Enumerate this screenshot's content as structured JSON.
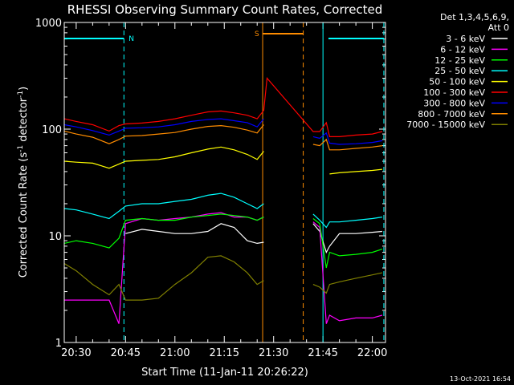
{
  "chart_data": {
    "type": "line",
    "title": "RHESSI Observing Summary Count Rates, Corrected",
    "xlabel": "Start Time (11-Jan-11 20:26:22)",
    "ylabel": "Corrected Count Rate (s-1 detector-1)",
    "ylabel_parts": [
      "Corrected Count Rate (s",
      "-1",
      " detector",
      "-1",
      ")"
    ],
    "y_scale": "log",
    "ylim": [
      1,
      1000
    ],
    "xlim": [
      "20:26:22",
      "22:04:00"
    ],
    "x_ticks": [
      "20:30",
      "20:45",
      "21:00",
      "21:15",
      "21:30",
      "21:45",
      "22:00"
    ],
    "y_ticks": [
      "1",
      "10",
      "100",
      "1000"
    ],
    "legend_header": [
      "Det 1,3,4,5,6,9,",
      "Att 0"
    ],
    "legend_placement": "right",
    "timestamp": "13-Oct-2021 16:54",
    "flags": [
      {
        "label": "N",
        "color": "#00ffff",
        "start": "20:26:22",
        "end": "20:44:30"
      },
      {
        "label": "",
        "color": "#00ffff",
        "start": "21:46:40",
        "end": "22:03:30"
      },
      {
        "label": "S",
        "color": "#ff8c00",
        "start": "21:26:40",
        "end": "21:39:00"
      }
    ],
    "vlines": [
      {
        "time": "20:26:22",
        "style": "solid",
        "color": "#00ffff"
      },
      {
        "time": "20:44:30",
        "style": "dashed",
        "color": "#00ffff"
      },
      {
        "time": "21:26:40",
        "style": "solid",
        "color": "#ff8c00"
      },
      {
        "time": "21:39:00",
        "style": "dashed",
        "color": "#ff8c00"
      },
      {
        "time": "21:45:00",
        "style": "solid",
        "color": "#00ffff"
      },
      {
        "time": "22:03:30",
        "style": "dashed",
        "color": "#00ffff"
      }
    ],
    "x": [
      "20:26:22",
      "20:30",
      "20:35",
      "20:40",
      "20:43",
      "20:45",
      "20:50",
      "20:55",
      "21:00",
      "21:05",
      "21:10",
      "21:14",
      "21:18",
      "21:22",
      "21:25",
      "21:27",
      "21:28",
      "21:42",
      "21:44",
      "21:46",
      "21:47",
      "21:50",
      "21:55",
      "22:00",
      "22:03"
    ],
    "series": [
      {
        "name": "3 - 6 keV",
        "color": "#ffffff",
        "values": [
          null,
          null,
          null,
          null,
          null,
          10.5,
          11.5,
          11,
          10.5,
          10.5,
          11,
          13,
          12,
          9,
          8.5,
          8.7,
          null,
          13,
          11,
          7,
          8,
          10.5,
          10.5,
          10.8,
          11
        ]
      },
      {
        "name": "6 - 12 keV",
        "color": "#ff00ff",
        "values": [
          2.5,
          2.5,
          2.5,
          2.5,
          1.5,
          13,
          14.5,
          14,
          14.5,
          15,
          16,
          16.5,
          15,
          15,
          14,
          15,
          null,
          13.5,
          12,
          1.5,
          1.8,
          1.6,
          1.7,
          1.7,
          1.8
        ]
      },
      {
        "name": "12 - 25 keV",
        "color": "#00ff00",
        "values": [
          8.5,
          9,
          8.5,
          7.7,
          9.5,
          14,
          14.5,
          14,
          14,
          15,
          15.5,
          16,
          15.5,
          15,
          14,
          15,
          null,
          14.5,
          13,
          5,
          7,
          6.5,
          6.7,
          7,
          7.5
        ]
      },
      {
        "name": "25 - 50 keV",
        "color": "#00ffff",
        "values": [
          18,
          17.5,
          16,
          14.5,
          17,
          19,
          20,
          20,
          21,
          22,
          24,
          25,
          23,
          20,
          18,
          20,
          null,
          16,
          14,
          12,
          13.5,
          13.5,
          14,
          14.5,
          15
        ]
      },
      {
        "name": "50 - 100 keV",
        "color": "#ffff00",
        "values": [
          50,
          49,
          48,
          43,
          47,
          50,
          51,
          52,
          55,
          60,
          65,
          68,
          64,
          58,
          52,
          62,
          null,
          null,
          null,
          null,
          38,
          39,
          40,
          41,
          42
        ]
      },
      {
        "name": "100 - 300 keV",
        "color": "#ff0000",
        "values": [
          125,
          118,
          110,
          96,
          108,
          112,
          114,
          118,
          125,
          135,
          145,
          148,
          142,
          135,
          125,
          150,
          300,
          95,
          95,
          115,
          85,
          85,
          88,
          90,
          95
        ]
      },
      {
        "name": "300 - 800 keV",
        "color": "#0000ff",
        "values": [
          110,
          105,
          97,
          88,
          96,
          102,
          103,
          105,
          110,
          118,
          123,
          125,
          120,
          115,
          105,
          125,
          null,
          85,
          82,
          92,
          74,
          72,
          73,
          75,
          78
        ]
      },
      {
        "name": "800 - 7000 keV",
        "color": "#ff8c00",
        "values": [
          96,
          90,
          84,
          73,
          80,
          86,
          87,
          90,
          93,
          100,
          106,
          108,
          104,
          98,
          92,
          110,
          null,
          72,
          70,
          80,
          64,
          64,
          66,
          68,
          70
        ]
      },
      {
        "name": "7000 - 15000 keV",
        "color": "#808000",
        "values": [
          5.5,
          4.7,
          3.5,
          2.8,
          3.5,
          2.5,
          2.5,
          2.6,
          3.5,
          4.5,
          6.3,
          6.5,
          5.7,
          4.5,
          3.5,
          3.8,
          null,
          3.5,
          3.3,
          2.9,
          3.5,
          3.7,
          4.0,
          4.3,
          4.5
        ]
      }
    ]
  }
}
